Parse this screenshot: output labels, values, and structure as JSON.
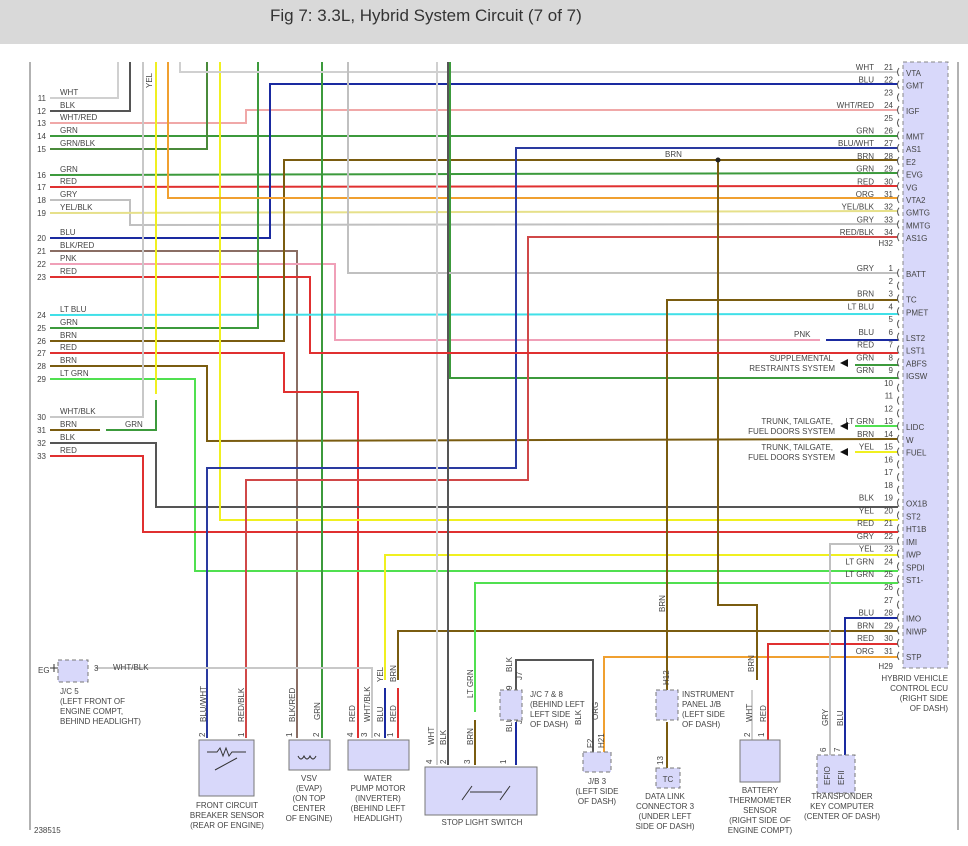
{
  "title": "Fig 7: 3.3L, Hybrid System Circuit (7 of 7)",
  "figure_id": "238515",
  "wire_colors": {
    "WHT": "#d0d0d0",
    "BLK": "#555555",
    "WHT/RED": "#f0a8a8",
    "GRN": "#3c9a3c",
    "GRN/BLK": "#4a8a3a",
    "RED": "#e03030",
    "GRY": "#c0c0c0",
    "YEL/BLK": "#e6e08a",
    "BLU": "#1a2aa0",
    "BLK/RED": "#8a6e64",
    "PNK": "#f0a0b8",
    "LT BLU": "#40e0e8",
    "BRN": "#7a5c10",
    "LT GRN": "#50e050",
    "WHT/BLK": "#c8c8c8",
    "YEL": "#f0f020",
    "ORG": "#f0a030",
    "RED/BLK": "#d04848",
    "BLU/WHT": "#2a3aa0"
  },
  "ecu_fill": "#d8d8fa",
  "left_pins": [
    {
      "pin": "11",
      "wire": "WHT"
    },
    {
      "pin": "12",
      "wire": "BLK"
    },
    {
      "pin": "13",
      "wire": "WHT/RED"
    },
    {
      "pin": "14",
      "wire": "GRN"
    },
    {
      "pin": "15",
      "wire": "GRN/BLK"
    },
    {
      "pin": "16",
      "wire": "GRN"
    },
    {
      "pin": "17",
      "wire": "RED"
    },
    {
      "pin": "18",
      "wire": "GRY"
    },
    {
      "pin": "19",
      "wire": "YEL/BLK"
    },
    {
      "pin": "20",
      "wire": "BLU"
    },
    {
      "pin": "21",
      "wire": "BLK/RED"
    },
    {
      "pin": "22",
      "wire": "PNK"
    },
    {
      "pin": "23",
      "wire": "RED"
    },
    {
      "pin": "24",
      "wire": "LT BLU"
    },
    {
      "pin": "25",
      "wire": "GRN"
    },
    {
      "pin": "26",
      "wire": "BRN"
    },
    {
      "pin": "27",
      "wire": "RED"
    },
    {
      "pin": "28",
      "wire": "BRN"
    },
    {
      "pin": "29",
      "wire": "LT GRN"
    },
    {
      "pin": "30",
      "wire": "WHT/BLK"
    },
    {
      "pin": "31",
      "wire": "BRN"
    },
    {
      "pin": "32",
      "wire": "BLK"
    },
    {
      "pin": "33",
      "wire": "RED"
    }
  ],
  "ecu": {
    "connector_h32": "H32",
    "connector_h29": "H29",
    "label": [
      "HYBRID VEHICLE",
      "CONTROL ECU",
      "(RIGHT SIDE",
      "OF DASH)"
    ],
    "h32_pins": [
      {
        "pin": "21",
        "wire": "WHT",
        "terminal": "VTA"
      },
      {
        "pin": "22",
        "wire": "BLU",
        "terminal": "GMT"
      },
      {
        "pin": "23",
        "wire": "",
        "terminal": ""
      },
      {
        "pin": "24",
        "wire": "WHT/RED",
        "terminal": "IGF"
      },
      {
        "pin": "25",
        "wire": "",
        "terminal": ""
      },
      {
        "pin": "26",
        "wire": "GRN",
        "terminal": "MMT"
      },
      {
        "pin": "27",
        "wire": "BLU/WHT",
        "terminal": "AS1"
      },
      {
        "pin": "28",
        "wire": "BRN",
        "terminal": "E2"
      },
      {
        "pin": "29",
        "wire": "GRN",
        "terminal": "EVG"
      },
      {
        "pin": "30",
        "wire": "RED",
        "terminal": "VG"
      },
      {
        "pin": "31",
        "wire": "ORG",
        "terminal": "VTA2"
      },
      {
        "pin": "32",
        "wire": "YEL/BLK",
        "terminal": "GMTG"
      },
      {
        "pin": "33",
        "wire": "GRY",
        "terminal": "MMTG"
      },
      {
        "pin": "34",
        "wire": "RED/BLK",
        "terminal": "AS1G"
      }
    ],
    "h29_pins": [
      {
        "pin": "1",
        "wire": "GRY",
        "terminal": "BATT"
      },
      {
        "pin": "2",
        "wire": "",
        "terminal": ""
      },
      {
        "pin": "3",
        "wire": "BRN",
        "terminal": "TC"
      },
      {
        "pin": "4",
        "wire": "LT BLU",
        "terminal": "PMET"
      },
      {
        "pin": "5",
        "wire": "",
        "terminal": ""
      },
      {
        "pin": "6",
        "wire": "BLU",
        "terminal": "LST2"
      },
      {
        "pin": "7",
        "wire": "RED",
        "terminal": "LST1"
      },
      {
        "pin": "8",
        "wire": "GRN",
        "terminal": "ABFS"
      },
      {
        "pin": "9",
        "wire": "GRN",
        "terminal": "IGSW"
      },
      {
        "pin": "10",
        "wire": "",
        "terminal": ""
      },
      {
        "pin": "11",
        "wire": "",
        "terminal": ""
      },
      {
        "pin": "12",
        "wire": "",
        "terminal": ""
      },
      {
        "pin": "13",
        "wire": "LT GRN",
        "terminal": "LIDC"
      },
      {
        "pin": "14",
        "wire": "BRN",
        "terminal": "W"
      },
      {
        "pin": "15",
        "wire": "YEL",
        "terminal": "FUEL"
      },
      {
        "pin": "16",
        "wire": "",
        "terminal": ""
      },
      {
        "pin": "17",
        "wire": "",
        "terminal": ""
      },
      {
        "pin": "18",
        "wire": "",
        "terminal": ""
      },
      {
        "pin": "19",
        "wire": "BLK",
        "terminal": "OX1B"
      },
      {
        "pin": "20",
        "wire": "YEL",
        "terminal": "ST2"
      },
      {
        "pin": "21",
        "wire": "RED",
        "terminal": "HT1B"
      },
      {
        "pin": "22",
        "wire": "GRY",
        "terminal": "IMI"
      },
      {
        "pin": "23",
        "wire": "YEL",
        "terminal": "IWP"
      },
      {
        "pin": "24",
        "wire": "LT GRN",
        "terminal": "SPDI"
      },
      {
        "pin": "25",
        "wire": "LT GRN",
        "terminal": "ST1-"
      },
      {
        "pin": "26",
        "wire": "",
        "terminal": ""
      },
      {
        "pin": "27",
        "wire": "",
        "terminal": ""
      },
      {
        "pin": "28",
        "wire": "BLU",
        "terminal": "IMO"
      },
      {
        "pin": "29",
        "wire": "BRN",
        "terminal": "NIWP"
      },
      {
        "pin": "30",
        "wire": "RED",
        "terminal": ""
      },
      {
        "pin": "31",
        "wire": "ORG",
        "terminal": "STP"
      }
    ]
  },
  "side_notes": [
    {
      "pin": "8",
      "lines": [
        "SUPPLEMENTAL",
        "RESTRAINTS SYSTEM"
      ]
    },
    {
      "pin": "13",
      "lines": [
        "TRUNK, TAILGATE,",
        "FUEL DOORS SYSTEM"
      ]
    },
    {
      "pin": "15",
      "lines": [
        "TRUNK, TAILGATE,",
        "FUEL DOORS SYSTEM"
      ]
    }
  ],
  "mid_labels": [
    "BRN",
    "PNK",
    "GRN",
    "WHT/BLK",
    "EG",
    "3"
  ],
  "vertical_wire_labels": [
    "YEL",
    "BLU/WHT",
    "RED/BLK",
    "BLK/RED",
    "GRN",
    "RED",
    "WHT/BLK",
    "BLU",
    "RED",
    "YEL",
    "BRN",
    "WHT",
    "BLK",
    "BRN",
    "LT GRN",
    "BLK",
    "BLU 10",
    "BLK",
    "ORG",
    "BRN",
    "WHT",
    "RED",
    "BRN",
    "GRY",
    "BLU",
    "H12",
    "M6",
    "F2",
    "H21",
    "J7",
    "J8"
  ],
  "components": [
    {
      "id": "jc5",
      "lines": [
        "J/C 5",
        "(LEFT FRONT OF",
        "ENGINE COMPT,",
        "BEHIND HEADLIGHT)"
      ],
      "pins": []
    },
    {
      "id": "front-circuit-breaker-sensor",
      "lines": [
        "FRONT CIRCUIT",
        "BREAKER SENSOR",
        "(REAR OF ENGINE)"
      ],
      "pins": [
        "2",
        "1"
      ]
    },
    {
      "id": "vsv",
      "lines": [
        "VSV",
        "(EVAP)",
        "(ON TOP",
        "CENTER",
        "OF ENGINE)"
      ],
      "pins": [
        "1",
        "2"
      ]
    },
    {
      "id": "water-pump-motor",
      "lines": [
        "WATER",
        "PUMP MOTOR",
        "(INVERTER)",
        "(BEHIND LEFT",
        "HEADLIGHT)"
      ],
      "pins": [
        "4",
        "3",
        "2",
        "1"
      ]
    },
    {
      "id": "stop-light-switch",
      "lines": [
        "STOP LIGHT SWITCH"
      ],
      "pins": [
        "4",
        "2",
        "3",
        "1"
      ]
    },
    {
      "id": "jc7-8",
      "lines": [
        "J/C 7 & 8",
        "(BEHIND LEFT",
        "LEFT SIDE",
        "OF DASH)"
      ],
      "pins": [
        "9"
      ]
    },
    {
      "id": "jb3",
      "lines": [
        "J/B 3",
        "(LEFT SIDE",
        "OF DASH)"
      ],
      "pins": []
    },
    {
      "id": "instrument-panel-jb",
      "lines": [
        "INSTRUMENT",
        "PANEL J/B",
        "(LEFT SIDE",
        "OF DASH)"
      ],
      "pins": []
    },
    {
      "id": "data-link-connector-3",
      "lines": [
        "DATA LINK",
        "CONNECTOR 3",
        "(UNDER LEFT",
        "SIDE OF DASH)"
      ],
      "pins": [
        "13"
      ],
      "terminal": "TC"
    },
    {
      "id": "battery-thermometer-sensor",
      "lines": [
        "BATTERY",
        "THERMOMETER",
        "SENSOR",
        "(RIGHT SIDE OF",
        "ENGINE COMPT)"
      ],
      "pins": [
        "2",
        "1"
      ]
    },
    {
      "id": "transponder-key-computer",
      "lines": [
        "TRANSPONDER",
        "KEY COMPUTER",
        "(CENTER OF DASH)"
      ],
      "pins": [
        "6",
        "7"
      ],
      "terminals": [
        "EFIO",
        "EFII"
      ]
    }
  ]
}
